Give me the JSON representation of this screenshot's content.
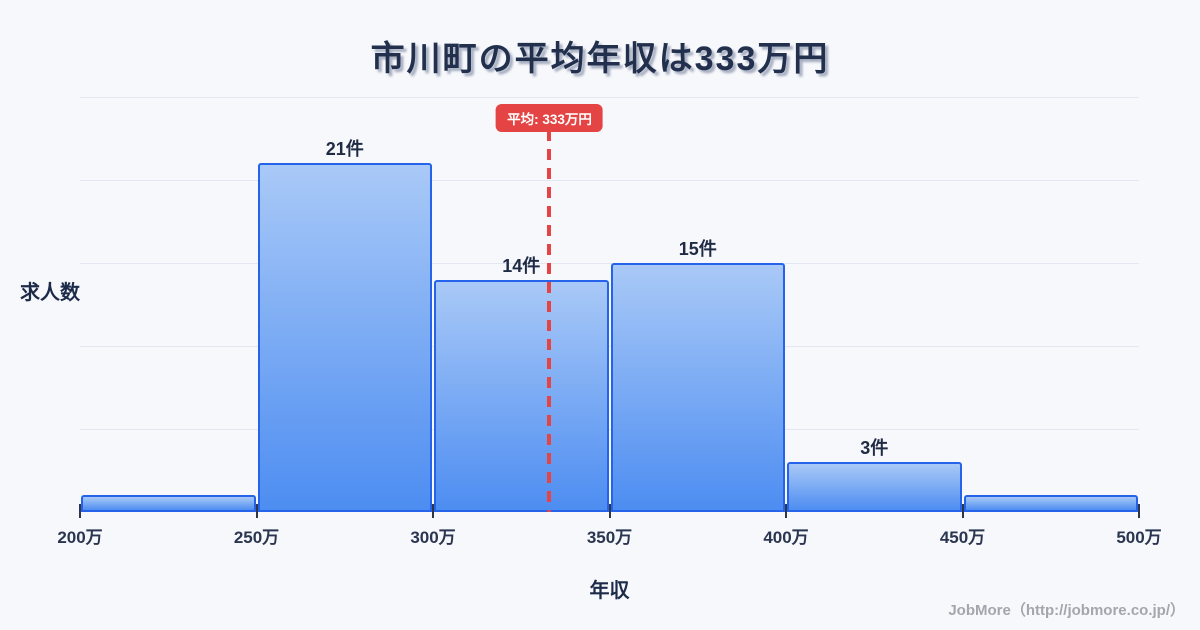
{
  "title": "市川町の平均年収は333万円",
  "chart_data": {
    "type": "bar",
    "subtype": "histogram",
    "title": "市川町の平均年収は333万円",
    "xlabel": "年収",
    "ylabel": "求人数",
    "xlim": [
      200,
      500
    ],
    "ylim": [
      0,
      25
    ],
    "grid": true,
    "gridline_values": [
      5,
      10,
      15,
      20,
      25
    ],
    "legend": "none",
    "bins": [
      {
        "range_start": 200,
        "range_end": 250,
        "count": 1,
        "count_label": ""
      },
      {
        "range_start": 250,
        "range_end": 300,
        "count": 21,
        "count_label": "21件"
      },
      {
        "range_start": 300,
        "range_end": 350,
        "count": 14,
        "count_label": "14件"
      },
      {
        "range_start": 350,
        "range_end": 400,
        "count": 15,
        "count_label": "15件"
      },
      {
        "range_start": 400,
        "range_end": 450,
        "count": 3,
        "count_label": "3件"
      },
      {
        "range_start": 450,
        "range_end": 500,
        "count": 1,
        "count_label": ""
      }
    ],
    "x_ticks": [
      {
        "value": 200,
        "label": "200万"
      },
      {
        "value": 250,
        "label": "250万"
      },
      {
        "value": 300,
        "label": "300万"
      },
      {
        "value": 350,
        "label": "350万"
      },
      {
        "value": 400,
        "label": "400万"
      },
      {
        "value": 450,
        "label": "450万"
      },
      {
        "value": 500,
        "label": "500万"
      }
    ],
    "average_marker": {
      "value": 333,
      "label": "平均: 333万円"
    },
    "colors": {
      "background": "#f7f8fb",
      "bar_fill_top": "#a9c9f7",
      "bar_fill_bottom": "#4d8df1",
      "bar_border": "#2563eb",
      "grid_line": "#e2e7f1",
      "average_red": "#e54444",
      "title_text": "#22304e",
      "axis_text": "#2a3550",
      "count_text": "#1f2b45",
      "footer_text": "#a2a6ad"
    }
  },
  "footer": {
    "credit": "JobMore（http://jobmore.co.jp/）"
  }
}
